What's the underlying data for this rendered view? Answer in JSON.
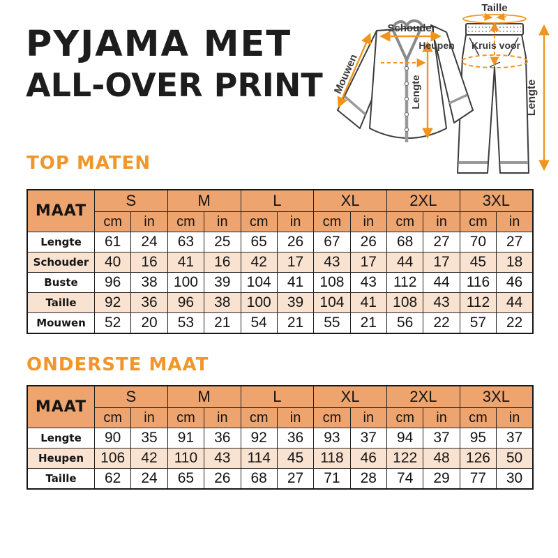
{
  "title": {
    "line1": "PYJAMA MET",
    "line2": "ALL-OVER PRINT"
  },
  "colors": {
    "accent_orange": "#F0962B",
    "arrow_orange": "#F0941E",
    "table_header_bg": "#EEA46F",
    "table_alt_row_bg": "#FAE2D0",
    "title_text": "#1D1D1D"
  },
  "diagram": {
    "labels": {
      "schouder": "Schouder",
      "mouwen": "Mouwen",
      "lengte_top": "Lengte",
      "taille": "Taille",
      "heupen": "Heupen",
      "kruis_voor": "Kruis voor",
      "lengte_bottom": "Lengte"
    }
  },
  "size_table": {
    "corner_label": "MAAT",
    "sizes": [
      "S",
      "M",
      "L",
      "XL",
      "2XL",
      "3XL"
    ],
    "units": [
      "cm",
      "in"
    ]
  },
  "tables": [
    {
      "heading": "TOP MATEN",
      "rows": [
        {
          "label": "Lengte",
          "values": [
            61,
            24,
            63,
            25,
            65,
            26,
            67,
            26,
            68,
            27,
            70,
            27
          ]
        },
        {
          "label": "Schouder",
          "values": [
            40,
            16,
            41,
            16,
            42,
            17,
            43,
            17,
            44,
            17,
            45,
            18
          ]
        },
        {
          "label": "Buste",
          "values": [
            96,
            38,
            100,
            39,
            104,
            41,
            108,
            43,
            112,
            44,
            116,
            46
          ]
        },
        {
          "label": "Taille",
          "values": [
            92,
            36,
            96,
            38,
            100,
            39,
            104,
            41,
            108,
            43,
            112,
            44
          ]
        },
        {
          "label": "Mouwen",
          "values": [
            52,
            20,
            53,
            21,
            54,
            21,
            55,
            21,
            56,
            22,
            57,
            22
          ]
        }
      ]
    },
    {
      "heading": "ONDERSTE MAAT",
      "rows": [
        {
          "label": "Lengte",
          "values": [
            90,
            35,
            91,
            36,
            92,
            36,
            93,
            37,
            94,
            37,
            95,
            37
          ]
        },
        {
          "label": "Heupen",
          "values": [
            106,
            42,
            110,
            43,
            114,
            45,
            118,
            46,
            122,
            48,
            126,
            50
          ]
        },
        {
          "label": "Taille",
          "values": [
            62,
            24,
            65,
            26,
            68,
            27,
            71,
            28,
            74,
            29,
            77,
            30
          ]
        }
      ]
    }
  ]
}
